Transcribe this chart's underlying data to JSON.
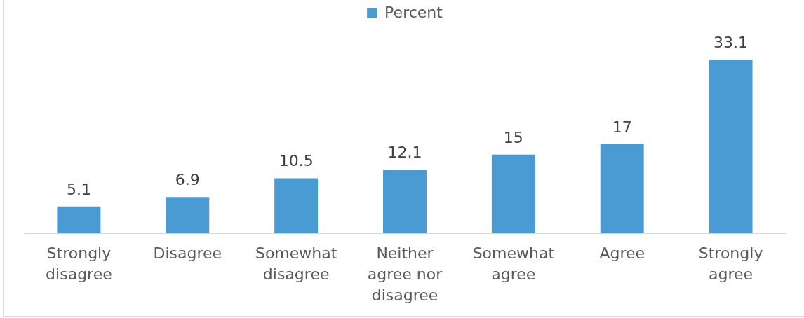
{
  "chart_data": {
    "type": "bar",
    "categories": [
      "Strongly disagree",
      "Disagree",
      "Somewhat disagree",
      "Neither agree nor disagree",
      "Somewhat agree",
      "Agree",
      "Strongly agree"
    ],
    "series": [
      {
        "name": "Percent",
        "color": "#4a9bd4",
        "values": [
          5.1,
          6.9,
          10.5,
          12.1,
          15,
          17,
          33.1
        ]
      }
    ],
    "tick_labels": "x",
    "grid": false,
    "legend": "top",
    "data_labels": true
  }
}
